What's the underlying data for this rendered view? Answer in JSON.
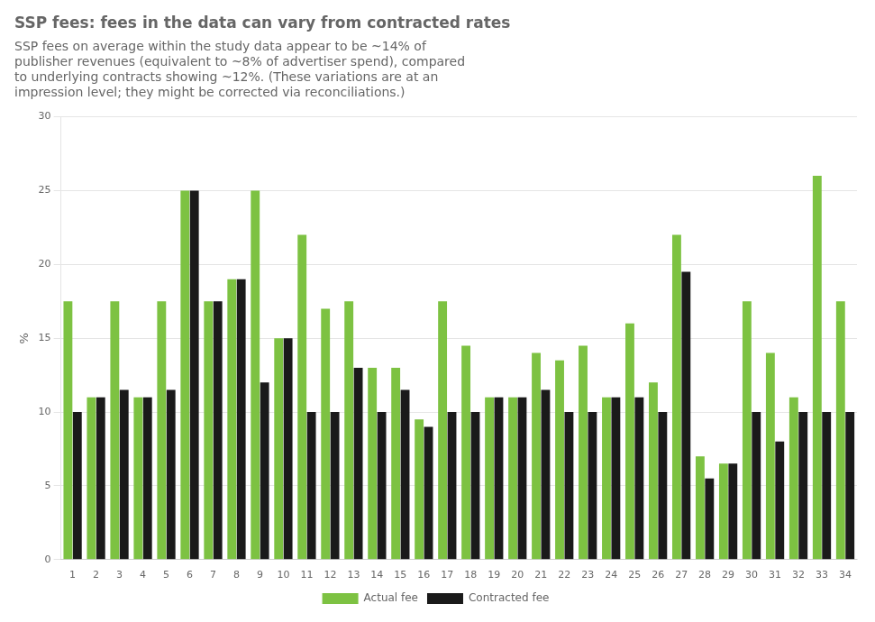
{
  "chart_data": {
    "type": "bar",
    "title": "SSP fees: fees in the data can vary from contracted rates",
    "subtitle": [
      "SSP fees on average within the study data appear to be ~14% of",
      "publisher revenues (equivalent to ~8% of advertiser spend), compared",
      "to underlying contracts showing ~12%. (These variations are at an",
      "impression level; they might be corrected via reconciliations.)"
    ],
    "y_label": "%",
    "categories": [
      "1",
      "2",
      "3",
      "4",
      "5",
      "6",
      "7",
      "8",
      "9",
      "10",
      "11",
      "12",
      "13",
      "14",
      "15",
      "16",
      "17",
      "18",
      "19",
      "20",
      "21",
      "22",
      "23",
      "24",
      "25",
      "26",
      "27",
      "28",
      "29",
      "30",
      "31",
      "32",
      "33",
      "34"
    ],
    "series": [
      {
        "name": "Actual fee",
        "color": "#7DC242",
        "values": [
          17.5,
          11,
          17.5,
          11,
          17.5,
          25,
          17.5,
          19,
          25,
          15,
          22,
          17,
          17.5,
          13,
          13,
          9.5,
          17.5,
          14.5,
          11,
          11,
          14,
          13.5,
          14.5,
          11,
          16,
          12,
          22,
          7,
          6.5,
          17.5,
          14,
          11,
          26,
          17.5
        ]
      },
      {
        "name": "Contracted fee",
        "color": "#1A1A1A",
        "values": [
          10,
          11,
          11.5,
          11,
          11.5,
          25,
          17.5,
          19,
          12,
          15,
          10,
          10,
          13,
          10,
          11.5,
          9,
          10,
          10,
          11,
          11,
          11.5,
          10,
          10,
          11,
          11,
          10,
          19.5,
          5.5,
          6.5,
          10,
          8,
          10,
          10,
          10
        ]
      }
    ],
    "ylim": [
      0,
      30
    ],
    "yticks": [
      0,
      5,
      10,
      15,
      20,
      25,
      30
    ],
    "grid": true,
    "legend": "bottom"
  }
}
